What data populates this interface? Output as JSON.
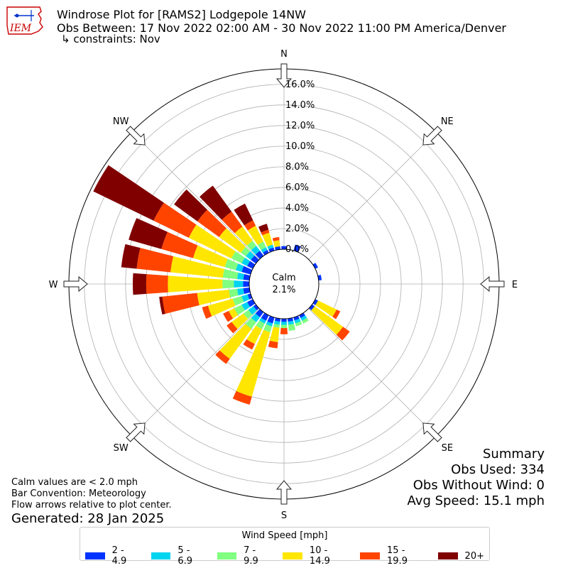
{
  "header": {
    "title": "Windrose Plot for [RAMS2] Lodgepole 14NW",
    "obs_range": "Obs Between: 17 Nov 2022 02:00 AM - 30 Nov 2022 11:00 PM America/Denver",
    "constraints": "↳ constraints: Nov"
  },
  "logo": {
    "text": "IEM"
  },
  "notes": {
    "calm_def": "Calm values are < 2.0 mph",
    "bar_convention": "Bar Convention: Meteorology",
    "flow_arrows": "Flow arrows relative to plot center.",
    "generated": "Generated: 28 Jan 2025"
  },
  "summary": {
    "heading": "Summary",
    "obs_used": "Obs Used: 334",
    "obs_without_wind": "Obs Without Wind: 0",
    "avg_speed": "Avg Speed: 15.1 mph"
  },
  "colors": [
    "#0033ff",
    "#00d4f0",
    "#80ff80",
    "#ffe600",
    "#ff4400",
    "#800000"
  ],
  "chart_data": {
    "type": "windrose",
    "calm": {
      "label": "Calm",
      "value": "2.1%"
    },
    "radial_axis": {
      "min": 0,
      "max": 17.5,
      "ticks": [
        0,
        2,
        4,
        6,
        8,
        10,
        12,
        14,
        16
      ],
      "tick_labels": [
        "0.0%",
        "2.0%",
        "4.0%",
        "6.0%",
        "8.0%",
        "10.0%",
        "12.0%",
        "14.0%",
        "16.0%"
      ]
    },
    "directions": [
      {
        "label": "N",
        "angle": 0
      },
      {
        "label": "NE",
        "angle": 45
      },
      {
        "label": "E",
        "angle": 90
      },
      {
        "label": "SE",
        "angle": 135
      },
      {
        "label": "S",
        "angle": 180
      },
      {
        "label": "SW",
        "angle": 225
      },
      {
        "label": "W",
        "angle": 270
      },
      {
        "label": "NW",
        "angle": 315
      }
    ],
    "legend_title": "Wind Speed [mph]",
    "speed_bins": [
      "2 - 4.9",
      "5 - 6.9",
      "7 - 9.9",
      "10 - 14.9",
      "15 - 19.9",
      "20+"
    ],
    "sector_width_deg": 10,
    "sectors": [
      {
        "dir": 0,
        "cum": [
          0.3,
          0.3,
          0.3,
          0.3,
          0.3,
          0.3
        ]
      },
      {
        "dir": 20,
        "cum": [
          0.6,
          0.6,
          0.6,
          0.6,
          0.6,
          0.6
        ]
      },
      {
        "dir": 60,
        "cum": [
          0.3,
          0.3,
          0.3,
          0.3,
          0.3,
          0.3
        ]
      },
      {
        "dir": 80,
        "cum": [
          0.3,
          0.3,
          0.3,
          0.3,
          0.3,
          0.3
        ]
      },
      {
        "dir": 120,
        "cum": [
          0.3,
          0.3,
          0.3,
          2.3,
          2.7,
          2.7
        ]
      },
      {
        "dir": 130,
        "cum": [
          0.3,
          0.3,
          0.3,
          3.7,
          4.5,
          4.5
        ]
      },
      {
        "dir": 150,
        "cum": [
          0.3,
          0.6,
          0.9,
          0.9,
          0.9,
          0.9
        ]
      },
      {
        "dir": 160,
        "cum": [
          0.3,
          0.6,
          0.9,
          0.9,
          0.9,
          0.9
        ]
      },
      {
        "dir": 170,
        "cum": [
          0.3,
          0.6,
          1.2,
          1.2,
          1.2,
          1.2
        ]
      },
      {
        "dir": 180,
        "cum": [
          0.3,
          0.6,
          0.9,
          0.9,
          1.5,
          1.5
        ]
      },
      {
        "dir": 190,
        "cum": [
          0.3,
          0.6,
          0.9,
          2.3,
          2.9,
          2.9
        ]
      },
      {
        "dir": 200,
        "cum": [
          0.6,
          0.9,
          1.5,
          8.0,
          8.8,
          8.8
        ]
      },
      {
        "dir": 210,
        "cum": [
          0.6,
          0.9,
          1.5,
          3.1,
          3.7,
          3.7
        ]
      },
      {
        "dir": 220,
        "cum": [
          0.6,
          1.2,
          2.0,
          5.6,
          6.2,
          6.2
        ]
      },
      {
        "dir": 230,
        "cum": [
          0.3,
          0.9,
          1.5,
          2.9,
          3.5,
          3.5
        ]
      },
      {
        "dir": 240,
        "cum": [
          0.6,
          1.2,
          2.0,
          2.6,
          3.2,
          3.2
        ]
      },
      {
        "dir": 250,
        "cum": [
          0.3,
          0.9,
          1.8,
          4.3,
          4.9,
          4.9
        ]
      },
      {
        "dir": 260,
        "cum": [
          0.6,
          1.2,
          2.0,
          5.1,
          8.5,
          8.8
        ]
      },
      {
        "dir": 270,
        "cum": [
          0.6,
          1.5,
          2.6,
          7.9,
          10.0,
          11.3
        ]
      },
      {
        "dir": 280,
        "cum": [
          0.6,
          1.2,
          2.6,
          7.7,
          11.0,
          12.5
        ]
      },
      {
        "dir": 290,
        "cum": [
          0.9,
          1.5,
          2.6,
          5.8,
          9.0,
          12.3
        ]
      },
      {
        "dir": 300,
        "cum": [
          0.6,
          1.2,
          2.3,
          6.9,
          10.7,
          17.2
        ]
      },
      {
        "dir": 310,
        "cum": [
          0.6,
          1.2,
          1.8,
          4.4,
          7.0,
          9.8
        ]
      },
      {
        "dir": 320,
        "cum": [
          0.6,
          1.2,
          1.8,
          3.5,
          5.3,
          8.4
        ]
      },
      {
        "dir": 330,
        "cum": [
          0.3,
          0.6,
          1.2,
          2.9,
          3.5,
          5.3
        ]
      },
      {
        "dir": 340,
        "cum": [
          0.3,
          0.6,
          0.6,
          1.8,
          2.1,
          2.7
        ]
      },
      {
        "dir": 350,
        "cum": [
          0.3,
          0.3,
          0.3,
          0.9,
          1.2,
          1.2
        ]
      }
    ]
  }
}
